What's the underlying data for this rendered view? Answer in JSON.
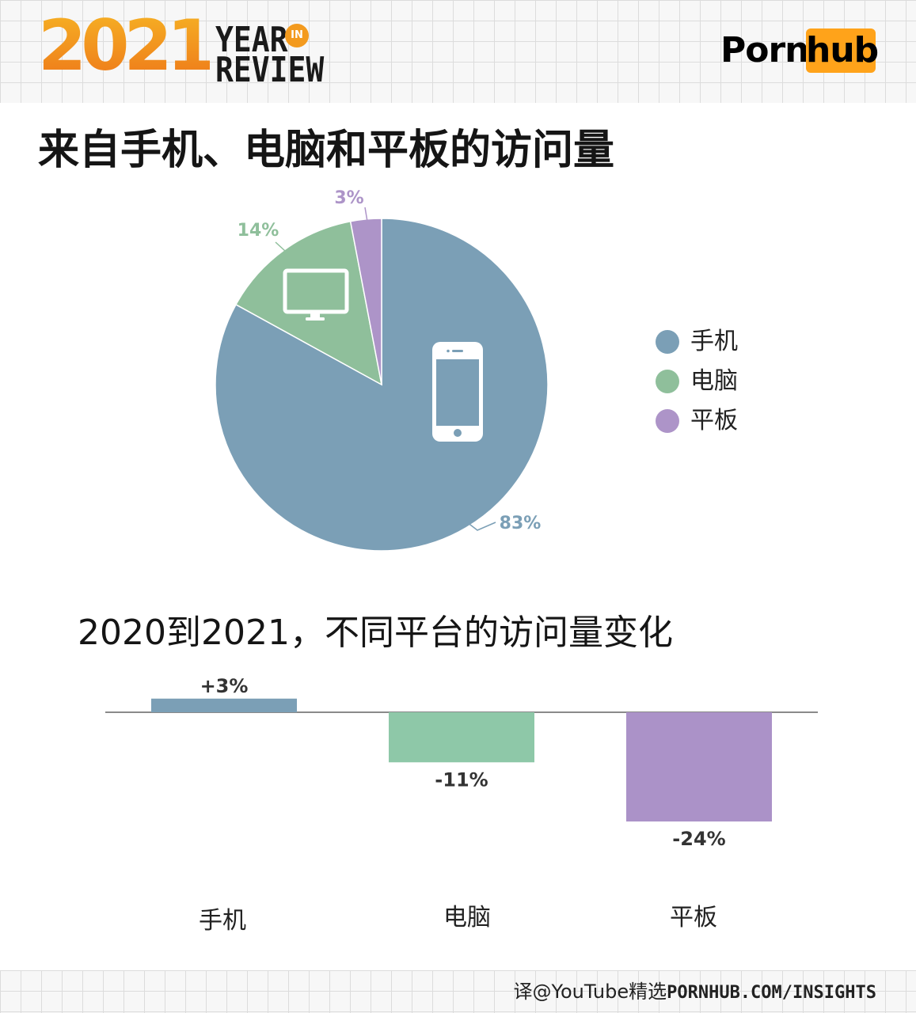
{
  "header": {
    "year_logo": "2021",
    "year_line1": "YEAR",
    "year_in": "IN",
    "year_line2": "REVIEW",
    "brand_left": "Porn",
    "brand_right": "hub"
  },
  "footer": {
    "credit": "译@YouTube精选",
    "url": "PORNHUB.COM/INSIGHTS"
  },
  "chart_data": [
    {
      "type": "pie",
      "title": "来自手机、电脑和平板的访问量",
      "categories": [
        "手机",
        "电脑",
        "平板"
      ],
      "values": [
        83,
        14,
        3
      ],
      "labels": [
        "83%",
        "14%",
        "3%"
      ],
      "colors": [
        "#7b9fb6",
        "#8fbf9b",
        "#ad94c8"
      ],
      "icons": [
        "phone-icon",
        "monitor-icon",
        null
      ],
      "legend": {
        "position": "right",
        "items": [
          "手机",
          "电脑",
          "平板"
        ]
      }
    },
    {
      "type": "bar",
      "title": "2020到2021，不同平台的访问量变化",
      "categories": [
        "手机",
        "电脑",
        "平板"
      ],
      "values": [
        3,
        -11,
        -24
      ],
      "labels": [
        "+3%",
        "-11%",
        "-24%"
      ],
      "colors": [
        "#7b9fb6",
        "#8ec8a8",
        "#ab92c8"
      ],
      "ylim": [
        -24,
        3
      ],
      "grid": false
    }
  ]
}
